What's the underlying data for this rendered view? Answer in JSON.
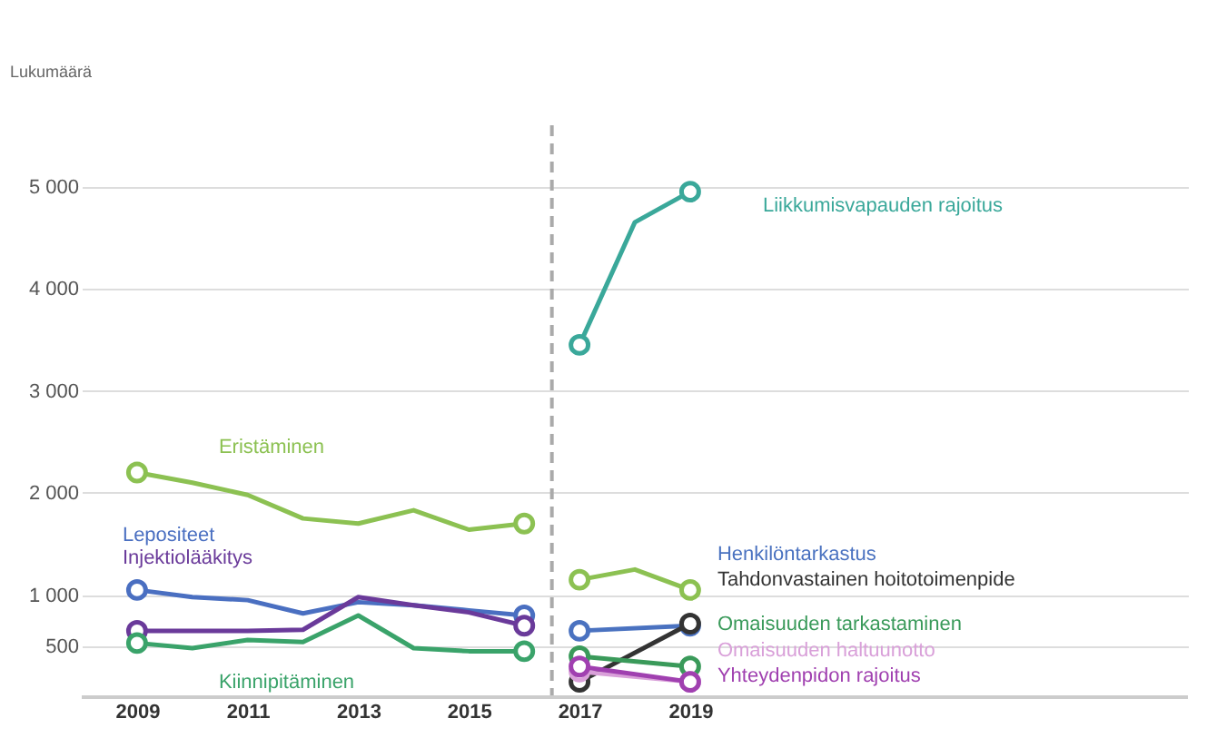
{
  "chart_data": {
    "type": "line",
    "ylabel": "Lukumäärä",
    "xlim": [
      2008,
      2028
    ],
    "xticks": [
      2009,
      2011,
      2013,
      2015,
      2017,
      2019
    ],
    "ylim": [
      0,
      5600
    ],
    "yticks": [
      500,
      {
        "value": 1000,
        "label": "1 000"
      },
      {
        "value": 2000,
        "label": "2 000"
      },
      {
        "value": 3000,
        "label": "3 000"
      },
      {
        "value": 4000,
        "label": "4 000"
      },
      {
        "value": 5000,
        "label": "5 000"
      }
    ],
    "grid": "y",
    "line_style": "solid",
    "ref_lines": [
      {
        "axis": "x",
        "value": 2016.5,
        "color": "#aaaaaa",
        "line_style": "dashed"
      }
    ],
    "series": [
      {
        "name": "Eristäminen",
        "color": "#8cc152",
        "x": [
          2009,
          2010,
          2011,
          2012,
          2013,
          2014,
          2015,
          2016
        ],
        "values": [
          2200,
          2100,
          1980,
          1750,
          1700,
          1830,
          1640,
          1700
        ]
      },
      {
        "name": "Lepositeet",
        "color": "#4a6fc1",
        "x": [
          2009,
          2010,
          2011,
          2012,
          2013,
          2014,
          2015,
          2016
        ],
        "values": [
          1050,
          980,
          950,
          820,
          930,
          900,
          850,
          800
        ]
      },
      {
        "name": "Injektiolääkitys",
        "color": "#6a3a9a",
        "x": [
          2009,
          2010,
          2011,
          2012,
          2013,
          2014,
          2015,
          2016
        ],
        "values": [
          650,
          650,
          650,
          660,
          980,
          900,
          830,
          700
        ]
      },
      {
        "name": "Kiinnipitäminen",
        "color": "#3aa36a",
        "x": [
          2009,
          2010,
          2011,
          2012,
          2013,
          2014,
          2015,
          2016
        ],
        "values": [
          530,
          480,
          560,
          540,
          800,
          480,
          450,
          450
        ]
      },
      {
        "name": "Liikkumisvapauden rajoitus",
        "color": "#3aa89a",
        "x": [
          2017,
          2018,
          2019
        ],
        "values": [
          3450,
          4650,
          4950
        ]
      },
      {
        "name": "Henkilöntarkastus",
        "color": "#4a72c0",
        "marker": "circle",
        "x": [
          2017,
          2019
        ],
        "values": [
          650,
          700
        ]
      },
      {
        "name": "Tahdonvastainen hoitotoimenpide",
        "color": "#333333",
        "marker": "circle",
        "x": [
          2017,
          2019
        ],
        "values": [
          150,
          720
        ]
      },
      {
        "name": "Omaisuuden tarkastaminen",
        "color": "#3a9a5a",
        "marker": "circle",
        "x": [
          2017,
          2019
        ],
        "values": [
          400,
          300
        ]
      },
      {
        "name": "Omaisuuden haltuunotto",
        "color": "#d9a0d9",
        "marker": "circle",
        "x": [
          2017,
          2019
        ],
        "values": [
          250,
          150
        ]
      },
      {
        "name": "Yhteydenpidon rajoitus",
        "color": "#a040b0",
        "marker": "circle",
        "x": [
          2017,
          2019
        ],
        "values": [
          300,
          150
        ]
      },
      {
        "color": "#8cc152",
        "x": [
          2017,
          2018,
          2019
        ],
        "values": [
          1150,
          1250,
          1050
        ]
      }
    ]
  }
}
